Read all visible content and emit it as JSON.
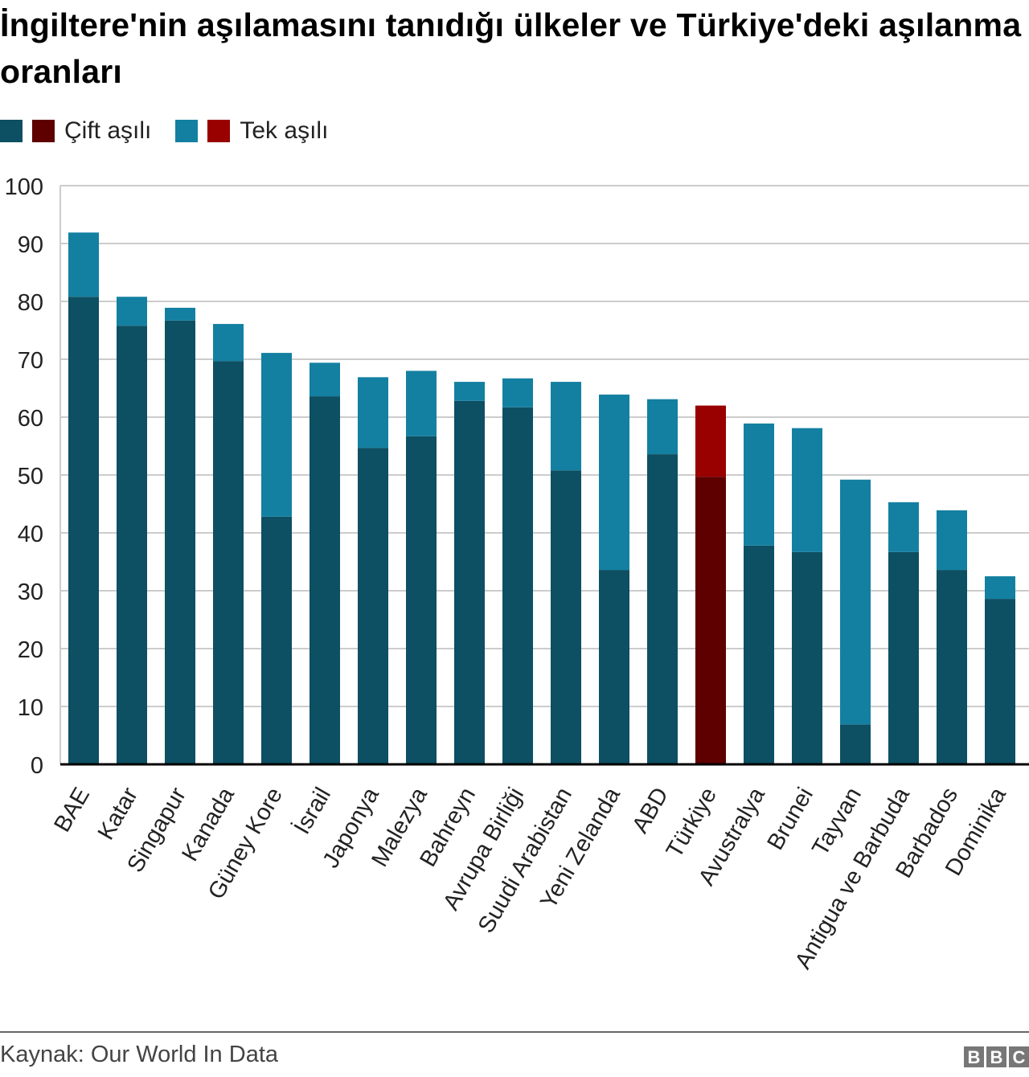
{
  "title": "İngiltere'nin aşılamasını tanıdığı ülkeler ve Türkiye'deki aşılanma oranları",
  "legend": [
    {
      "label": "Çift aşılı",
      "colors": [
        "#0d4f63",
        "#5e0000"
      ]
    },
    {
      "label": "Tek aşılı",
      "colors": [
        "#1380a1",
        "#990000"
      ]
    }
  ],
  "colors": {
    "double": "#0d4f63",
    "single": "#1380a1",
    "highlight_double": "#5e0000",
    "highlight_single": "#990000",
    "grid": "#cccccc",
    "axis": "#000000"
  },
  "chart_data": {
    "type": "bar",
    "stacked": true,
    "title": "İngiltere'nin aşılamasını tanıdığı ülkeler ve Türkiye'deki aşılanma oranları",
    "xlabel": "",
    "ylabel": "",
    "ylim": [
      0,
      100
    ],
    "yticks": [
      0,
      10,
      20,
      30,
      40,
      50,
      60,
      70,
      80,
      90,
      100
    ],
    "grid": true,
    "legend_position": "top-left",
    "highlight": "Türkiye",
    "categories": [
      "BAE",
      "Katar",
      "Singapur",
      "Kanada",
      "Güney Kore",
      "İsrail",
      "Japonya",
      "Malezya",
      "Bahreyn",
      "Avrupa Birliği",
      "Suudi Arabistan",
      "Yeni Zelanda",
      "ABD",
      "Türkiye",
      "Avustralya",
      "Brunei",
      "Tayvan",
      "Antigua ve Barbuda",
      "Barbados",
      "Dominika"
    ],
    "series": [
      {
        "name": "Çift aşılı",
        "values": [
          80.8,
          75.8,
          76.7,
          69.7,
          42.8,
          63.6,
          54.7,
          56.7,
          62.8,
          61.7,
          50.8,
          33.6,
          53.6,
          49.7,
          37.8,
          36.7,
          6.9,
          36.7,
          33.6,
          28.6
        ]
      },
      {
        "name": "Tek aşılı",
        "values": [
          11.1,
          5.0,
          2.2,
          6.4,
          28.3,
          5.8,
          12.2,
          11.3,
          3.3,
          5.0,
          15.3,
          30.3,
          9.5,
          12.3,
          21.1,
          21.4,
          42.3,
          8.6,
          10.3,
          3.9
        ]
      }
    ]
  },
  "footer": {
    "source": "Kaynak: Our World In Data",
    "logo": [
      "B",
      "B",
      "C"
    ]
  }
}
